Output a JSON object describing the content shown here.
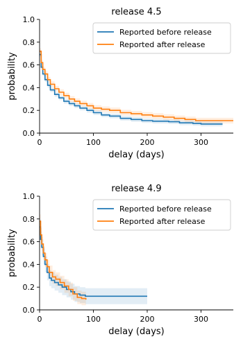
{
  "chart_data": [
    {
      "type": "line",
      "title": "release 4.5",
      "xlabel": "delay (days)",
      "ylabel": "probability",
      "xlim": [
        0,
        360
      ],
      "ylim": [
        0,
        1.0
      ],
      "xticks": [
        0,
        100,
        200,
        300
      ],
      "yticks": [
        0.0,
        0.2,
        0.4,
        0.6,
        0.8,
        1.0
      ],
      "xtick_labels": [
        "0",
        "100",
        "200",
        "300"
      ],
      "ytick_labels": [
        "0.0",
        "0.2",
        "0.4",
        "0.6",
        "0.8",
        "1.0"
      ],
      "grid": false,
      "legend_position": "top-right",
      "series": [
        {
          "name": "Reported before release",
          "color": "#1f77b4",
          "x": [
            0,
            3,
            6,
            10,
            15,
            20,
            28,
            36,
            45,
            55,
            65,
            75,
            88,
            100,
            115,
            130,
            150,
            170,
            190,
            210,
            240,
            260,
            285,
            300,
            340
          ],
          "y": [
            0.69,
            0.58,
            0.52,
            0.47,
            0.42,
            0.38,
            0.34,
            0.31,
            0.28,
            0.26,
            0.24,
            0.22,
            0.2,
            0.18,
            0.16,
            0.15,
            0.13,
            0.12,
            0.11,
            0.105,
            0.1,
            0.09,
            0.085,
            0.08,
            0.08
          ],
          "band": 0.02
        },
        {
          "name": "Reported after release",
          "color": "#ff7f0e",
          "x": [
            0,
            3,
            6,
            10,
            15,
            20,
            28,
            36,
            45,
            55,
            65,
            75,
            88,
            100,
            115,
            130,
            150,
            170,
            190,
            210,
            230,
            250,
            270,
            290,
            360
          ],
          "y": [
            0.72,
            0.62,
            0.56,
            0.52,
            0.47,
            0.43,
            0.39,
            0.36,
            0.33,
            0.3,
            0.28,
            0.26,
            0.24,
            0.22,
            0.21,
            0.2,
            0.18,
            0.17,
            0.16,
            0.15,
            0.14,
            0.13,
            0.12,
            0.11,
            0.11
          ],
          "band": 0.025
        }
      ]
    },
    {
      "type": "line",
      "title": "release 4.9",
      "xlabel": "delay (days)",
      "ylabel": "probability",
      "xlim": [
        0,
        360
      ],
      "ylim": [
        0,
        1.0
      ],
      "xticks": [
        0,
        100,
        200,
        300
      ],
      "yticks": [
        0.0,
        0.2,
        0.4,
        0.6,
        0.8,
        1.0
      ],
      "xtick_labels": [
        "0",
        "100",
        "200",
        "300"
      ],
      "ytick_labels": [
        "0.0",
        "0.2",
        "0.4",
        "0.6",
        "0.8",
        "1.0"
      ],
      "grid": false,
      "legend_position": "top-right",
      "series": [
        {
          "name": "Reported before release",
          "color": "#1f77b4",
          "x": [
            0,
            2,
            4,
            7,
            10,
            14,
            18,
            22,
            28,
            35,
            42,
            50,
            58,
            65,
            75,
            85,
            200
          ],
          "y": [
            0.73,
            0.62,
            0.55,
            0.47,
            0.4,
            0.33,
            0.28,
            0.26,
            0.24,
            0.22,
            0.2,
            0.18,
            0.16,
            0.14,
            0.13,
            0.12,
            0.12
          ],
          "band": 0.07
        },
        {
          "name": "Reported after release",
          "color": "#ff7f0e",
          "x": [
            0,
            2,
            4,
            7,
            10,
            14,
            18,
            24,
            30,
            38,
            46,
            54,
            62,
            70,
            78,
            86
          ],
          "y": [
            0.78,
            0.66,
            0.58,
            0.5,
            0.44,
            0.38,
            0.33,
            0.29,
            0.27,
            0.24,
            0.21,
            0.18,
            0.14,
            0.11,
            0.1,
            0.09
          ],
          "band": 0.06
        }
      ]
    }
  ]
}
